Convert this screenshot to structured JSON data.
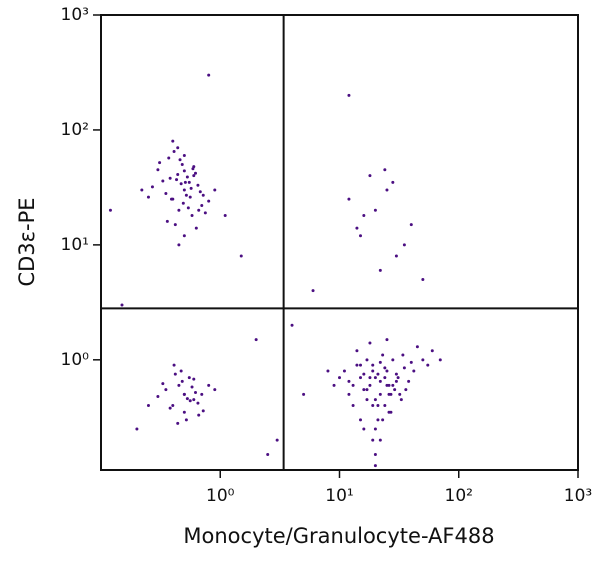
{
  "chart_data": {
    "type": "scatter",
    "x_label": "Monocyte/Granulocyte-AF488",
    "y_label": "CD3ε-PE",
    "log_x": true,
    "log_y": true,
    "xlim": [
      0.1,
      1000
    ],
    "ylim": [
      0.11,
      1000
    ],
    "xticks": [
      {
        "value": 1,
        "label": "10⁰"
      },
      {
        "value": 10,
        "label": "10¹"
      },
      {
        "value": 100,
        "label": "10²"
      },
      {
        "value": 1000,
        "label": "10³"
      }
    ],
    "yticks": [
      {
        "value": 1,
        "label": "10⁰"
      },
      {
        "value": 10,
        "label": "10¹"
      },
      {
        "value": 100,
        "label": "10²"
      },
      {
        "value": 1000,
        "label": "10³"
      }
    ],
    "gates": {
      "x": 3.4,
      "y": 2.8
    },
    "color": "#4b0f82",
    "x": [
      0.5,
      0.4,
      0.6,
      0.45,
      0.55,
      0.35,
      0.7,
      0.3,
      0.5,
      0.42,
      0.65,
      0.48,
      0.38,
      0.58,
      0.52,
      0.44,
      0.8,
      0.27,
      0.62,
      0.5,
      0.46,
      0.56,
      0.33,
      0.9,
      0.4,
      0.54,
      0.6,
      0.47,
      0.36,
      0.68,
      0.5,
      0.43,
      0.75,
      0.31,
      0.57,
      0.49,
      0.41,
      0.63,
      0.53,
      0.25,
      0.45,
      0.59,
      0.37,
      0.72,
      0.51,
      0.44,
      0.66,
      0.39,
      1.1,
      0.22,
      0.5,
      0.45,
      0.6,
      0.4,
      0.55,
      0.35,
      0.7,
      0.5,
      0.48,
      0.65,
      0.3,
      0.52,
      0.58,
      0.42,
      0.8,
      0.38,
      0.62,
      0.47,
      0.56,
      0.33,
      0.72,
      0.5,
      0.44,
      0.6,
      0.25,
      0.9,
      0.53,
      0.41,
      0.66,
      0.2,
      20,
      18,
      25,
      15,
      22,
      30,
      12,
      19,
      28,
      16,
      35,
      21,
      24,
      14,
      40,
      17,
      26,
      20,
      32,
      11,
      23,
      27,
      18,
      45,
      13,
      22,
      19,
      29,
      16,
      38,
      21,
      25,
      10,
      33,
      20,
      50,
      15,
      24,
      17,
      28,
      60,
      12,
      22,
      19,
      36,
      26,
      14,
      20,
      31,
      9,
      23,
      18,
      42,
      27,
      16,
      21,
      55,
      13,
      25,
      19,
      34,
      22,
      70,
      15,
      20,
      8,
      26,
      30,
      17,
      24,
      20,
      25,
      15,
      30,
      12,
      40,
      18,
      22,
      35,
      28,
      16,
      50,
      24,
      12,
      14,
      0.15,
      2,
      3,
      1.5,
      0.8,
      5,
      6,
      0.12,
      2.5,
      4
    ],
    "values": [
      30,
      25,
      40,
      20,
      35,
      28,
      22,
      45,
      60,
      15,
      33,
      50,
      38,
      18,
      27,
      70,
      24,
      32,
      42,
      12,
      55,
      26,
      36,
      30,
      80,
      21,
      48,
      34,
      16,
      29,
      44,
      37,
      19,
      52,
      31,
      23,
      65,
      14,
      39,
      26,
      10,
      46,
      57,
      27,
      35,
      41,
      20,
      25,
      18,
      30,
      0.5,
      0.6,
      0.45,
      0.4,
      0.7,
      0.55,
      0.5,
      0.35,
      0.65,
      0.42,
      0.48,
      0.3,
      0.58,
      0.75,
      0.6,
      0.38,
      0.52,
      0.8,
      0.44,
      0.62,
      0.36,
      0.5,
      0.28,
      0.68,
      0.4,
      0.55,
      0.46,
      0.9,
      0.33,
      0.25,
      0.7,
      0.6,
      0.8,
      0.9,
      0.5,
      0.75,
      0.65,
      0.4,
      1.0,
      0.55,
      0.85,
      0.3,
      0.7,
      1.2,
      0.95,
      0.45,
      0.6,
      0.25,
      0.5,
      0.8,
      1.1,
      0.35,
      0.7,
      1.3,
      0.6,
      0.2,
      0.9,
      0.55,
      0.75,
      0.65,
      0.4,
      1.5,
      0.7,
      0.45,
      0.15,
      1.0,
      0.3,
      0.85,
      1.0,
      0.6,
      1.2,
      0.5,
      0.65,
      0.8,
      0.55,
      0.35,
      0.9,
      0.45,
      0.7,
      0.6,
      0.3,
      1.4,
      0.8,
      0.5,
      0.25,
      0.75,
      0.9,
      0.4,
      0.6,
      0.2,
      1.1,
      0.95,
      1.0,
      0.7,
      0.12,
      0.8,
      0.5,
      0.65,
      0.55,
      0.4,
      20,
      30,
      12,
      8,
      25,
      15,
      40,
      6,
      10,
      35,
      18,
      5,
      45,
      200,
      14,
      3,
      1.5,
      0.2,
      8,
      300,
      0.5,
      4,
      20,
      0.15,
      2
    ]
  }
}
